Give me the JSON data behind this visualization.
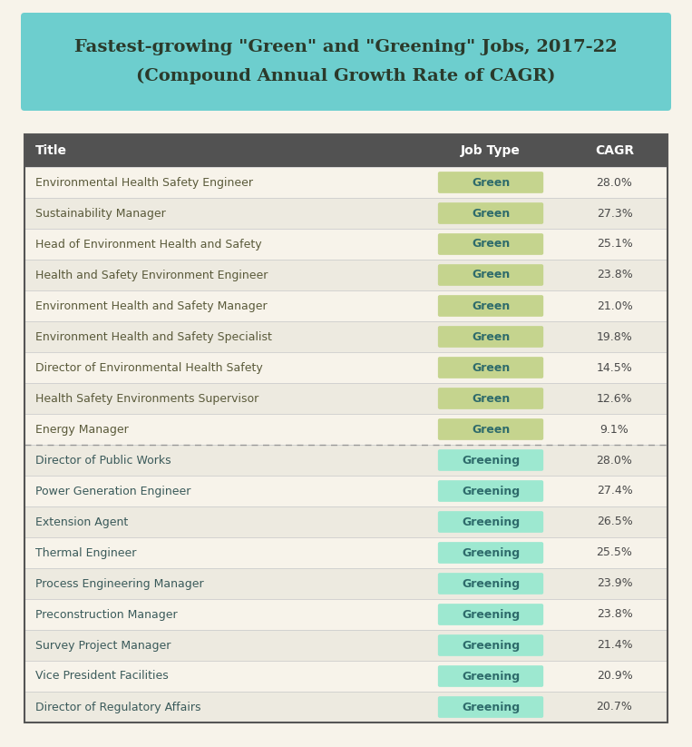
{
  "title_line1": "Fastest-growing \"Green\" and \"Greening\" Jobs, 2017-22",
  "title_line2": "(Compound Annual Growth Rate of CAGR)",
  "title_bg_color": "#6dcece",
  "title_text_color": "#2b3a2b",
  "page_bg_color": "#f7f3ea",
  "header_bg_color": "#525252",
  "header_text_color": "#ffffff",
  "table_border_color": "#555555",
  "row_bg_light": "#f7f3ea",
  "row_bg_dark": "#edeae0",
  "separator_color": "#999999",
  "green_badge_bg": "#c5d48e",
  "green_badge_text": "#2e6b6b",
  "greening_badge_bg": "#9de8d0",
  "greening_badge_text": "#2e6b6b",
  "title_font_size": 14,
  "header_font_size": 10,
  "row_font_size": 9,
  "badge_font_size": 9,
  "rows": [
    {
      "title": "Environmental Health Safety Engineer",
      "job_type": "Green",
      "cagr": "28.0%"
    },
    {
      "title": "Sustainability Manager",
      "job_type": "Green",
      "cagr": "27.3%"
    },
    {
      "title": "Head of Environment Health and Safety",
      "job_type": "Green",
      "cagr": "25.1%"
    },
    {
      "title": "Health and Safety Environment Engineer",
      "job_type": "Green",
      "cagr": "23.8%"
    },
    {
      "title": "Environment Health and Safety Manager",
      "job_type": "Green",
      "cagr": "21.0%"
    },
    {
      "title": "Environment Health and Safety Specialist",
      "job_type": "Green",
      "cagr": "19.8%"
    },
    {
      "title": "Director of Environmental Health Safety",
      "job_type": "Green",
      "cagr": "14.5%"
    },
    {
      "title": "Health Safety Environments Supervisor",
      "job_type": "Green",
      "cagr": "12.6%"
    },
    {
      "title": "Energy Manager",
      "job_type": "Green",
      "cagr": "9.1%"
    },
    {
      "title": "Director of Public Works",
      "job_type": "Greening",
      "cagr": "28.0%"
    },
    {
      "title": "Power Generation Engineer",
      "job_type": "Greening",
      "cagr": "27.4%"
    },
    {
      "title": "Extension Agent",
      "job_type": "Greening",
      "cagr": "26.5%"
    },
    {
      "title": "Thermal Engineer",
      "job_type": "Greening",
      "cagr": "25.5%"
    },
    {
      "title": "Process Engineering Manager",
      "job_type": "Greening",
      "cagr": "23.9%"
    },
    {
      "title": "Preconstruction Manager",
      "job_type": "Greening",
      "cagr": "23.8%"
    },
    {
      "title": "Survey Project Manager",
      "job_type": "Greening",
      "cagr": "21.4%"
    },
    {
      "title": "Vice President Facilities",
      "job_type": "Greening",
      "cagr": "20.9%"
    },
    {
      "title": "Director of Regulatory Affairs",
      "job_type": "Greening",
      "cagr": "20.7%"
    }
  ]
}
